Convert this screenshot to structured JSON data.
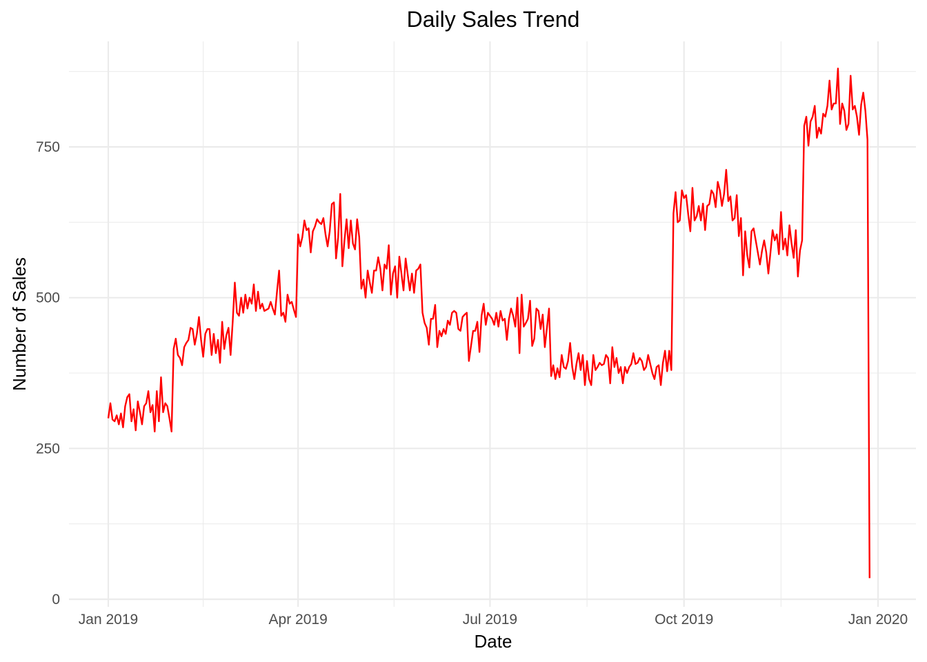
{
  "chart_data": {
    "type": "line",
    "title": "Daily Sales Trend",
    "xlabel": "Date",
    "ylabel": "Number of Sales",
    "x_range_days": [
      0,
      364
    ],
    "ylim": [
      0,
      880
    ],
    "y_ticks": [
      0,
      250,
      500,
      750
    ],
    "y_minor_ticks": [
      125,
      375,
      625,
      875
    ],
    "x_ticks": [
      {
        "label": "Jan 2019",
        "day": 0
      },
      {
        "label": "Apr 2019",
        "day": 90
      },
      {
        "label": "Jul 2019",
        "day": 181
      },
      {
        "label": "Oct 2019",
        "day": 273
      },
      {
        "label": "Jan 2020",
        "day": 365
      }
    ],
    "x_minor_days": [
      45,
      135.5,
      227,
      319
    ],
    "grid": true,
    "legend": "none",
    "series": [
      {
        "name": "Daily Sales",
        "color": "#ff0000",
        "start_date": "2019-01-01",
        "values": [
          300,
          325,
          298,
          295,
          305,
          290,
          308,
          285,
          320,
          335,
          340,
          295,
          315,
          280,
          328,
          310,
          290,
          320,
          325,
          345,
          310,
          322,
          278,
          345,
          295,
          368,
          310,
          325,
          320,
          300,
          278,
          415,
          432,
          405,
          400,
          388,
          418,
          425,
          430,
          450,
          448,
          422,
          440,
          468,
          430,
          402,
          440,
          448,
          448,
          405,
          440,
          408,
          430,
          392,
          460,
          415,
          438,
          450,
          405,
          460,
          525,
          475,
          470,
          500,
          475,
          505,
          482,
          500,
          490,
          522,
          478,
          510,
          482,
          490,
          478,
          480,
          482,
          493,
          482,
          472,
          510,
          545,
          470,
          475,
          460,
          505,
          490,
          493,
          480,
          468,
          605,
          585,
          600,
          628,
          612,
          615,
          575,
          610,
          618,
          630,
          625,
          622,
          632,
          605,
          585,
          610,
          655,
          658,
          565,
          600,
          672,
          552,
          595,
          630,
          582,
          628,
          590,
          580,
          630,
          600,
          515,
          530,
          500,
          545,
          525,
          508,
          545,
          545,
          567,
          548,
          512,
          555,
          548,
          587,
          505,
          540,
          552,
          500,
          568,
          540,
          512,
          565,
          538,
          512,
          540,
          508,
          545,
          548,
          555,
          475,
          458,
          450,
          422,
          465,
          465,
          488,
          418,
          445,
          436,
          448,
          440,
          462,
          455,
          475,
          478,
          475,
          448,
          445,
          468,
          472,
          475,
          395,
          420,
          445,
          445,
          460,
          410,
          470,
          490,
          455,
          475,
          470,
          465,
          455,
          475,
          452,
          478,
          462,
          465,
          430,
          465,
          482,
          470,
          452,
          500,
          408,
          505,
          452,
          458,
          465,
          495,
          420,
          432,
          482,
          478,
          448,
          472,
          418,
          450,
          482,
          370,
          388,
          365,
          383,
          368,
          405,
          385,
          382,
          395,
          425,
          385,
          365,
          390,
          408,
          380,
          405,
          355,
          395,
          365,
          355,
          405,
          380,
          385,
          392,
          388,
          390,
          405,
          400,
          358,
          418,
          385,
          400,
          375,
          385,
          358,
          385,
          375,
          385,
          390,
          408,
          390,
          392,
          400,
          395,
          380,
          385,
          405,
          390,
          375,
          365,
          385,
          388,
          355,
          392,
          412,
          378,
          412,
          380,
          640,
          675,
          625,
          628,
          678,
          665,
          670,
          638,
          610,
          682,
          628,
          635,
          652,
          628,
          656,
          612,
          652,
          655,
          678,
          672,
          650,
          692,
          678,
          652,
          672,
          712,
          660,
          668,
          628,
          632,
          670,
          602,
          632,
          537,
          610,
          570,
          550,
          610,
          615,
          595,
          575,
          555,
          578,
          595,
          575,
          540,
          575,
          612,
          595,
          605,
          572,
          642,
          580,
          598,
          570,
          620,
          590,
          566,
          612,
          535,
          578,
          595,
          785,
          800,
          752,
          792,
          800,
          818,
          765,
          782,
          772,
          805,
          800,
          818,
          860,
          812,
          822,
          822,
          880,
          788,
          822,
          810,
          778,
          788,
          868,
          812,
          818,
          800,
          770,
          820,
          840,
          810,
          762,
          35
        ]
      }
    ]
  }
}
